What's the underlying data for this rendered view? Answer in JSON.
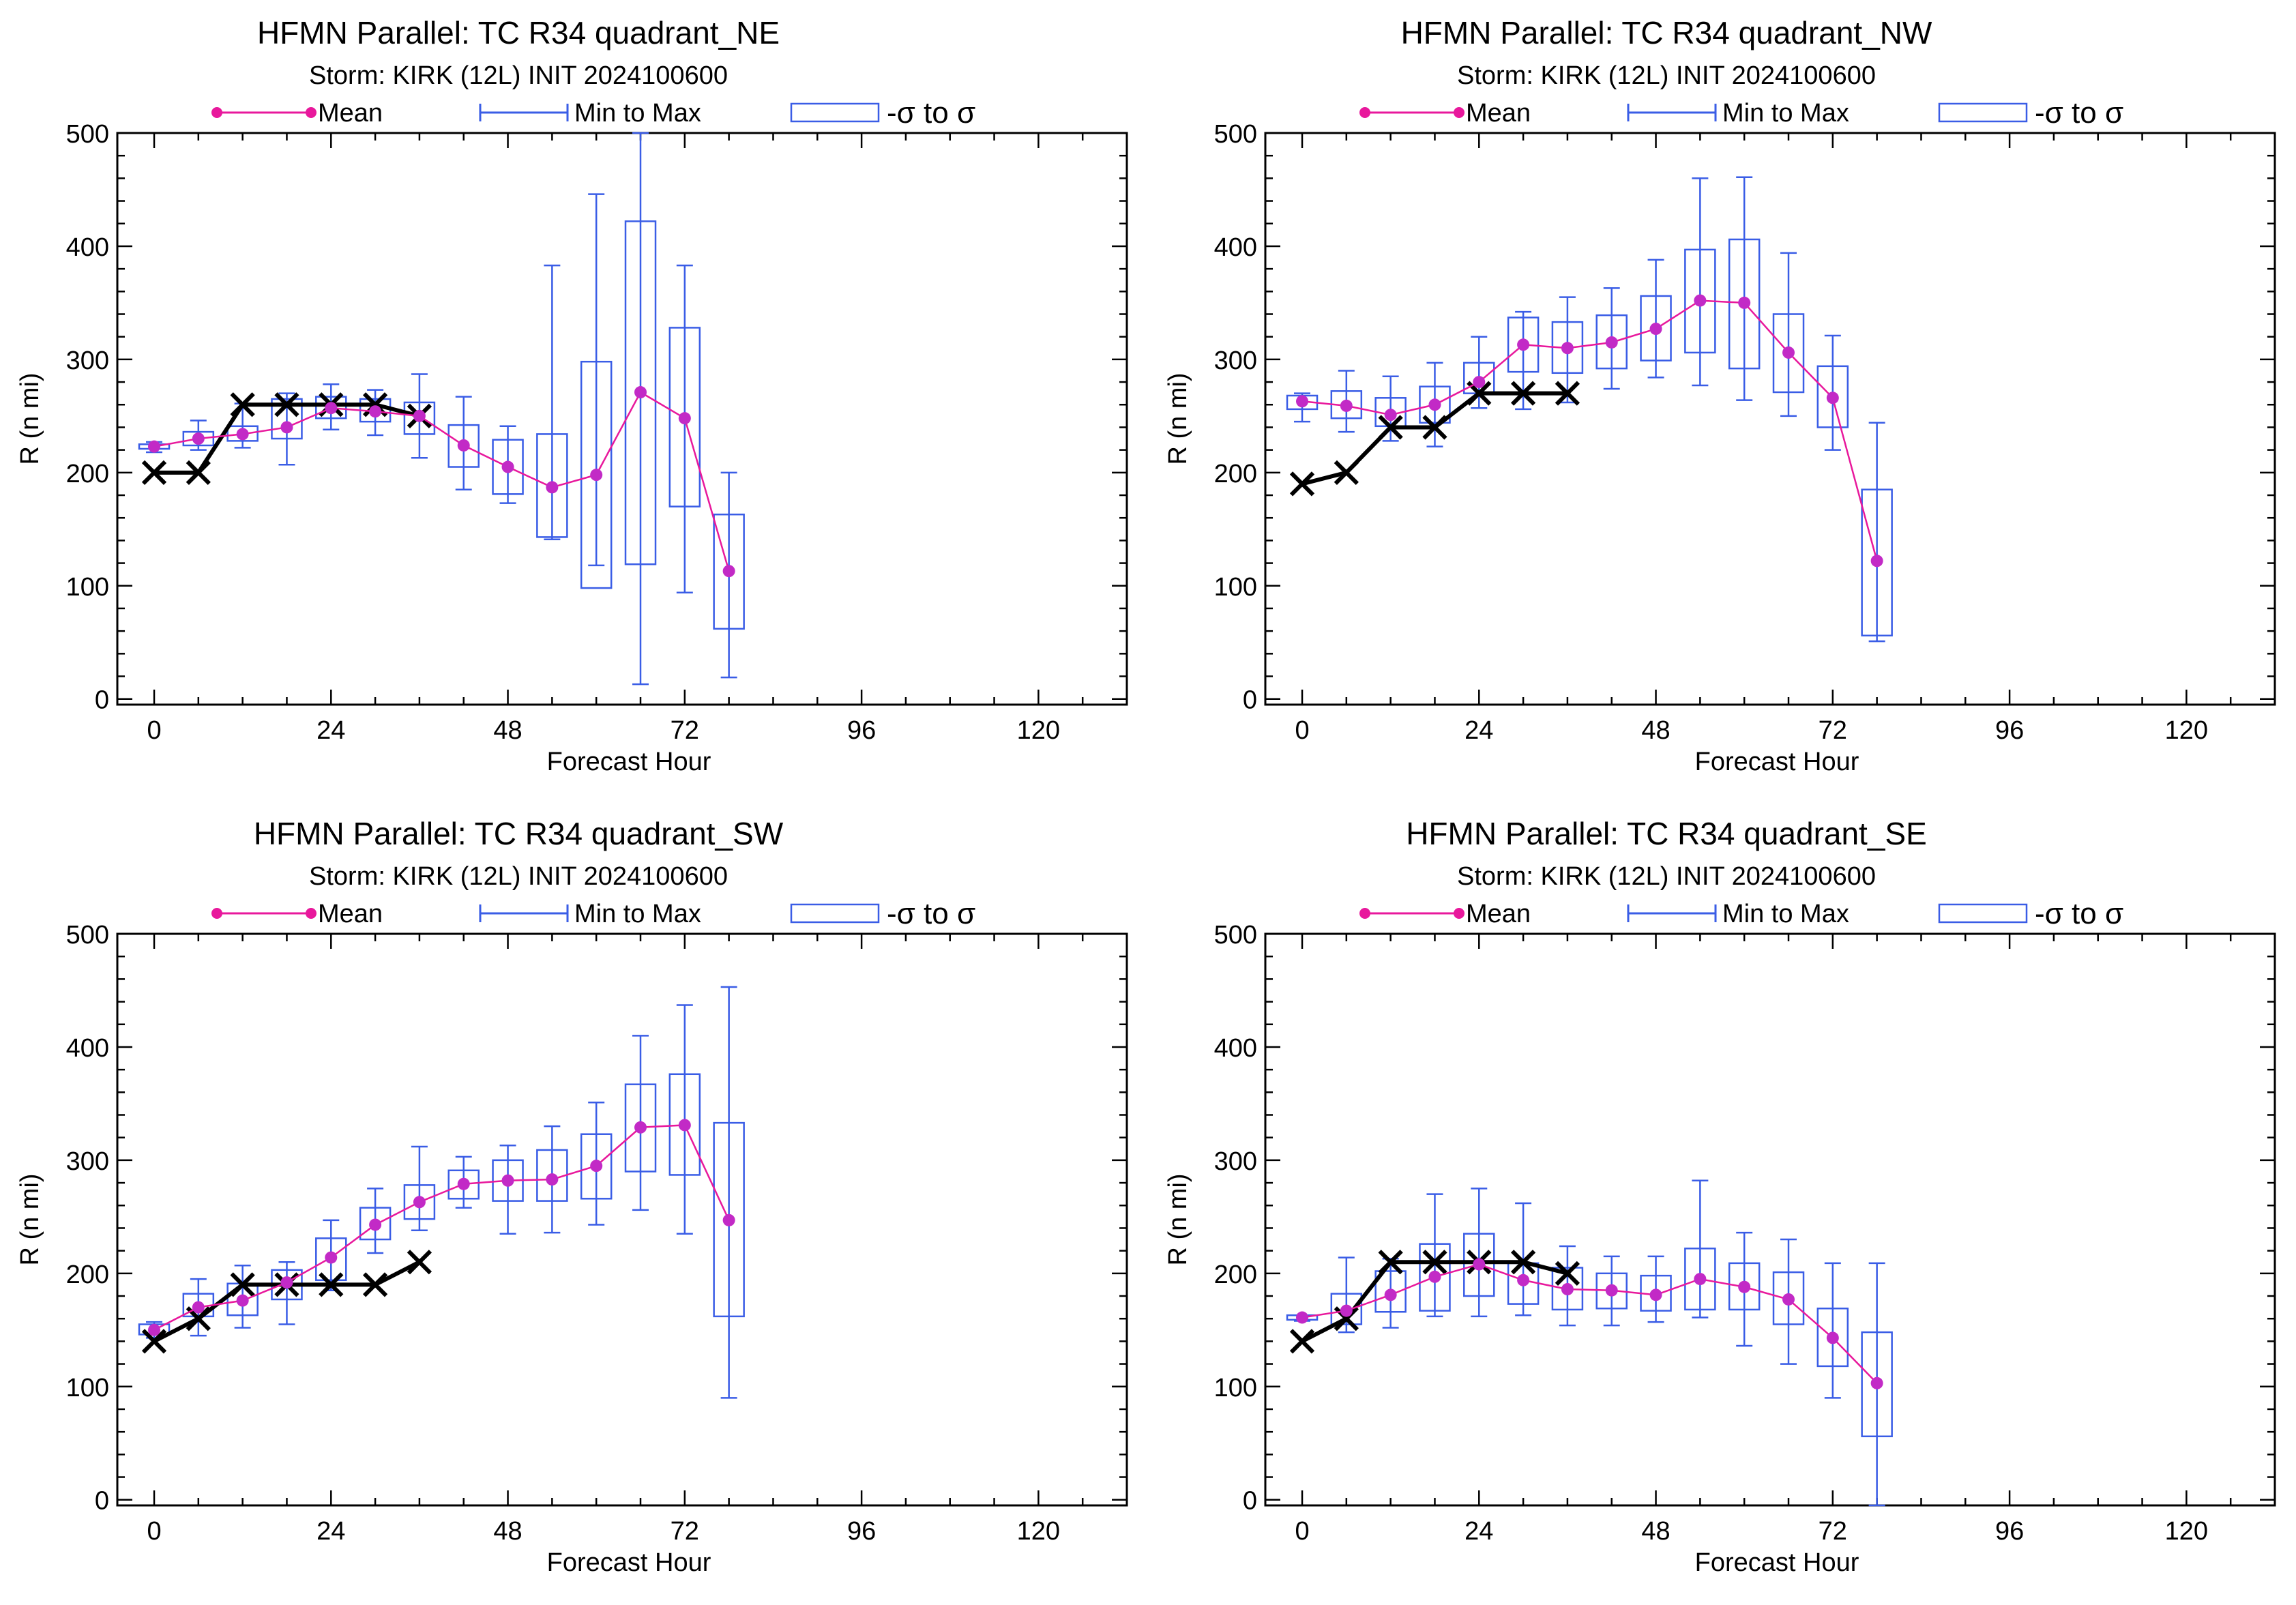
{
  "colors": {
    "mean": "#e8189c",
    "mean_dot": "#c22ac6",
    "range": "#3a5de6",
    "obs": "#000000"
  },
  "legend": {
    "mean": "Mean",
    "range": "Min to Max",
    "sigma": "-σ to σ"
  },
  "chart_data": [
    {
      "type": "box",
      "title": "HFMN Parallel: TC  R34 quadrant_NE",
      "subtitle": "Storm: KIRK (12L) INIT 2024100600",
      "xlabel": "Forecast Hour",
      "ylabel": "R (n mi)",
      "xlim": [
        -5,
        132
      ],
      "ylim": [
        -5,
        500
      ],
      "xticks": [
        0,
        24,
        48,
        72,
        96,
        120
      ],
      "yticks": [
        0,
        100,
        200,
        300,
        400,
        500
      ],
      "x": [
        0,
        6,
        12,
        18,
        24,
        30,
        36,
        42,
        48,
        54,
        60,
        66,
        72,
        78
      ],
      "mean": [
        223,
        230,
        234,
        240,
        257,
        254,
        250,
        224,
        205,
        187,
        198,
        271,
        248,
        113
      ],
      "min": [
        218,
        220,
        222,
        207,
        238,
        233,
        213,
        185,
        173,
        141,
        118,
        13,
        94,
        19
      ],
      "max": [
        227,
        246,
        261,
        270,
        278,
        273,
        287,
        267,
        241,
        383,
        446,
        500,
        383,
        200
      ],
      "sig_lo": [
        221,
        224,
        228,
        230,
        248,
        245,
        234,
        205,
        181,
        143,
        98,
        119,
        170,
        62
      ],
      "sig_hi": [
        225,
        236,
        241,
        265,
        267,
        265,
        262,
        242,
        229,
        234,
        298,
        422,
        328,
        163
      ],
      "obs_x": [
        0,
        6,
        12,
        18,
        24,
        30,
        36
      ],
      "obs": [
        200,
        200,
        260,
        260,
        260,
        260,
        250
      ]
    },
    {
      "type": "box",
      "title": "HFMN Parallel: TC  R34 quadrant_NW",
      "subtitle": "Storm: KIRK (12L) INIT 2024100600",
      "xlabel": "Forecast Hour",
      "ylabel": "R (n mi)",
      "xlim": [
        -5,
        132
      ],
      "ylim": [
        -5,
        500
      ],
      "xticks": [
        0,
        24,
        48,
        72,
        96,
        120
      ],
      "yticks": [
        0,
        100,
        200,
        300,
        400,
        500
      ],
      "x": [
        0,
        6,
        12,
        18,
        24,
        30,
        36,
        42,
        48,
        54,
        60,
        66,
        72,
        78
      ],
      "mean": [
        263,
        259,
        251,
        260,
        280,
        313,
        310,
        315,
        327,
        352,
        350,
        306,
        266,
        122
      ],
      "min": [
        245,
        236,
        228,
        223,
        257,
        256,
        262,
        274,
        284,
        277,
        264,
        250,
        220,
        51
      ],
      "max": [
        270,
        290,
        285,
        297,
        320,
        342,
        355,
        363,
        388,
        460,
        461,
        394,
        321,
        244
      ],
      "sig_lo": [
        256,
        248,
        241,
        244,
        270,
        289,
        288,
        292,
        299,
        306,
        292,
        271,
        240,
        56
      ],
      "sig_hi": [
        268,
        272,
        266,
        276,
        297,
        337,
        333,
        339,
        356,
        397,
        406,
        340,
        294,
        185
      ],
      "obs_x": [
        0,
        6,
        12,
        18,
        24,
        30,
        36
      ],
      "obs": [
        190,
        200,
        240,
        240,
        270,
        270,
        270
      ]
    },
    {
      "type": "box",
      "title": "HFMN Parallel: TC  R34 quadrant_SW",
      "subtitle": "Storm: KIRK (12L) INIT 2024100600",
      "xlabel": "Forecast Hour",
      "ylabel": "R (n mi)",
      "xlim": [
        -5,
        132
      ],
      "ylim": [
        -5,
        500
      ],
      "xticks": [
        0,
        24,
        48,
        72,
        96,
        120
      ],
      "yticks": [
        0,
        100,
        200,
        300,
        400,
        500
      ],
      "x": [
        0,
        6,
        12,
        18,
        24,
        30,
        36,
        42,
        48,
        54,
        60,
        66,
        72,
        78
      ],
      "mean": [
        150,
        170,
        176,
        192,
        214,
        243,
        263,
        279,
        282,
        283,
        295,
        329,
        331,
        247
      ],
      "min": [
        143,
        145,
        152,
        155,
        185,
        218,
        238,
        258,
        235,
        236,
        243,
        256,
        235,
        90
      ],
      "max": [
        157,
        195,
        207,
        210,
        247,
        275,
        312,
        303,
        313,
        330,
        351,
        410,
        437,
        453
      ],
      "sig_lo": [
        146,
        162,
        163,
        177,
        194,
        230,
        248,
        266,
        264,
        264,
        266,
        290,
        287,
        162
      ],
      "sig_hi": [
        155,
        182,
        191,
        203,
        231,
        258,
        278,
        291,
        300,
        309,
        323,
        367,
        376,
        333
      ],
      "obs_x": [
        0,
        6,
        12,
        18,
        24,
        30,
        36
      ],
      "obs": [
        140,
        160,
        190,
        190,
        190,
        190,
        210
      ]
    },
    {
      "type": "box",
      "title": "HFMN Parallel: TC  R34 quadrant_SE",
      "subtitle": "Storm: KIRK (12L) INIT 2024100600",
      "xlabel": "Forecast Hour",
      "ylabel": "R (n mi)",
      "xlim": [
        -5,
        132
      ],
      "ylim": [
        -5,
        500
      ],
      "xticks": [
        0,
        24,
        48,
        72,
        96,
        120
      ],
      "yticks": [
        0,
        100,
        200,
        300,
        400,
        500
      ],
      "x": [
        0,
        6,
        12,
        18,
        24,
        30,
        36,
        42,
        48,
        54,
        60,
        66,
        72,
        78
      ],
      "mean": [
        161,
        167,
        181,
        197,
        208,
        194,
        186,
        185,
        181,
        195,
        188,
        177,
        143,
        103
      ],
      "min": [
        158,
        148,
        152,
        162,
        162,
        163,
        154,
        154,
        157,
        161,
        136,
        120,
        90,
        -5
      ],
      "max": [
        163,
        214,
        213,
        270,
        275,
        262,
        224,
        215,
        215,
        282,
        236,
        230,
        209,
        209
      ],
      "sig_lo": [
        159,
        155,
        166,
        167,
        180,
        173,
        168,
        169,
        167,
        168,
        168,
        155,
        118,
        56
      ],
      "sig_hi": [
        163,
        182,
        202,
        226,
        235,
        209,
        205,
        200,
        198,
        222,
        209,
        201,
        169,
        148
      ],
      "obs_x": [
        0,
        6,
        12,
        18,
        24,
        30,
        36
      ],
      "obs": [
        140,
        160,
        210,
        210,
        210,
        210,
        200
      ]
    }
  ]
}
